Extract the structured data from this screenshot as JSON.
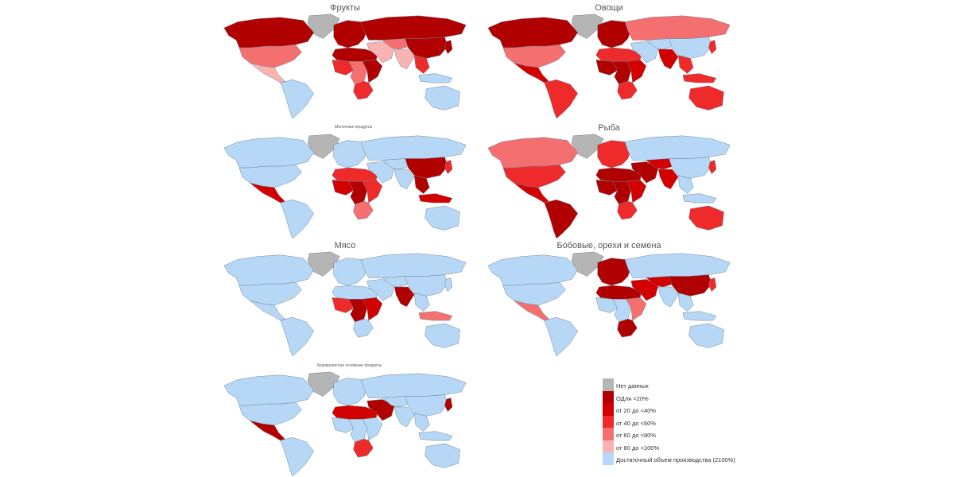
{
  "colors": {
    "no_data": "#b5b5b5",
    "lt20": "#b00000",
    "c20_40": "#d30000",
    "c40_60": "#ee2a2a",
    "c60_80": "#f47070",
    "c80_100": "#f9b3b3",
    "sufficient": "#b6d8f6",
    "border": "#6f7f90",
    "ocean": "#ffffff"
  },
  "panels": [
    {
      "id": "fruits",
      "title": "Фрукты"
    },
    {
      "id": "vegetables",
      "title": "Овощи"
    },
    {
      "id": "dairy",
      "title": "Молочные продукты"
    },
    {
      "id": "fish",
      "title": "Рыба"
    },
    {
      "id": "meat",
      "title": "Мясо"
    },
    {
      "id": "legumes",
      "title": "Бобовые, орехи и семена"
    },
    {
      "id": "staples",
      "title": "Крахмалистые основные продукты"
    }
  ],
  "legend": {
    "items": [
      {
        "key": "no_data",
        "label": "Нет данных"
      },
      {
        "key": "lt20",
        "label": "ОДля <20%"
      },
      {
        "key": "c20_40",
        "label": "от 20 до <40%"
      },
      {
        "key": "c40_60",
        "label": "от 40 до <60%"
      },
      {
        "key": "c60_80",
        "label": "от 60 до <80%"
      },
      {
        "key": "c80_100",
        "label": "от 80 до <100%"
      },
      {
        "key": "sufficient",
        "label": "Достаточный объем производства (2100%)"
      }
    ]
  },
  "map_data": {
    "fruits": {
      "greenland": "no_data",
      "north_america": "lt20",
      "usa": "c60_80",
      "central_america": "c80_100",
      "south_america": "sufficient",
      "europe": "lt20",
      "russia": "lt20",
      "north_africa": "lt20",
      "west_africa": "c40_60",
      "central_africa": "c60_80",
      "east_africa": "lt20",
      "southern_africa": "c40_60",
      "middle_east": "c80_100",
      "central_asia": "c60_80",
      "china": "lt20",
      "india": "c80_100",
      "southeast_asia": "c40_60",
      "japan": "lt20",
      "indonesia": "sufficient",
      "australia": "sufficient"
    },
    "vegetables": {
      "greenland": "no_data",
      "north_america": "lt20",
      "usa": "c60_80",
      "central_america": "c20_40",
      "south_america": "c40_60",
      "europe": "lt20",
      "russia": "c60_80",
      "north_africa": "c40_60",
      "west_africa": "lt20",
      "central_africa": "lt20",
      "east_africa": "c20_40",
      "southern_africa": "c40_60",
      "middle_east": "sufficient",
      "central_asia": "sufficient",
      "china": "sufficient",
      "india": "c20_40",
      "southeast_asia": "c40_60",
      "japan": "c40_60",
      "indonesia": "c40_60",
      "australia": "c40_60"
    },
    "dairy": {
      "greenland": "no_data",
      "north_america": "sufficient",
      "usa": "sufficient",
      "central_america": "c20_40",
      "south_america": "sufficient",
      "europe": "sufficient",
      "russia": "sufficient",
      "north_africa": "c40_60",
      "west_africa": "c20_40",
      "central_africa": "lt20",
      "east_africa": "c40_60",
      "southern_africa": "c60_80",
      "middle_east": "sufficient",
      "central_asia": "sufficient",
      "china": "lt20",
      "india": "sufficient",
      "southeast_asia": "lt20",
      "japan": "c40_60",
      "indonesia": "c20_40",
      "australia": "sufficient"
    },
    "fish": {
      "greenland": "no_data",
      "north_america": "c60_80",
      "usa": "c40_60",
      "central_america": "c20_40",
      "south_america": "lt20",
      "europe": "c40_60",
      "russia": "sufficient",
      "north_africa": "lt20",
      "west_africa": "lt20",
      "central_africa": "lt20",
      "east_africa": "c20_40",
      "southern_africa": "c40_60",
      "middle_east": "lt20",
      "central_asia": "c20_40",
      "china": "sufficient",
      "india": "c20_40",
      "southeast_asia": "sufficient",
      "japan": "c40_60",
      "indonesia": "sufficient",
      "australia": "c40_60"
    },
    "meat": {
      "greenland": "no_data",
      "north_america": "sufficient",
      "usa": "sufficient",
      "central_america": "sufficient",
      "south_america": "sufficient",
      "europe": "sufficient",
      "russia": "sufficient",
      "north_africa": "sufficient",
      "west_africa": "c40_60",
      "central_africa": "lt20",
      "east_africa": "c20_40",
      "southern_africa": "sufficient",
      "middle_east": "sufficient",
      "central_asia": "sufficient",
      "china": "sufficient",
      "india": "lt20",
      "southeast_asia": "sufficient",
      "japan": "sufficient",
      "indonesia": "c60_80",
      "australia": "sufficient"
    },
    "legumes": {
      "greenland": "no_data",
      "north_america": "sufficient",
      "usa": "sufficient",
      "central_america": "c60_80",
      "south_america": "sufficient",
      "europe": "lt20",
      "russia": "sufficient",
      "north_africa": "lt20",
      "west_africa": "sufficient",
      "central_africa": "sufficient",
      "east_africa": "c60_80",
      "southern_africa": "lt20",
      "middle_east": "c20_40",
      "central_asia": "c20_40",
      "china": "lt20",
      "india": "sufficient",
      "southeast_asia": "sufficient",
      "japan": "c40_60",
      "indonesia": "sufficient",
      "australia": "sufficient"
    },
    "staples": {
      "greenland": "no_data",
      "north_america": "sufficient",
      "usa": "sufficient",
      "central_america": "lt20",
      "south_america": "sufficient",
      "europe": "sufficient",
      "russia": "sufficient",
      "north_africa": "c20_40",
      "west_africa": "sufficient",
      "central_africa": "sufficient",
      "east_africa": "sufficient",
      "southern_africa": "c40_60",
      "middle_east": "lt20",
      "central_asia": "sufficient",
      "china": "sufficient",
      "india": "sufficient",
      "southeast_asia": "sufficient",
      "japan": "lt20",
      "indonesia": "sufficient",
      "australia": "sufficient"
    }
  }
}
